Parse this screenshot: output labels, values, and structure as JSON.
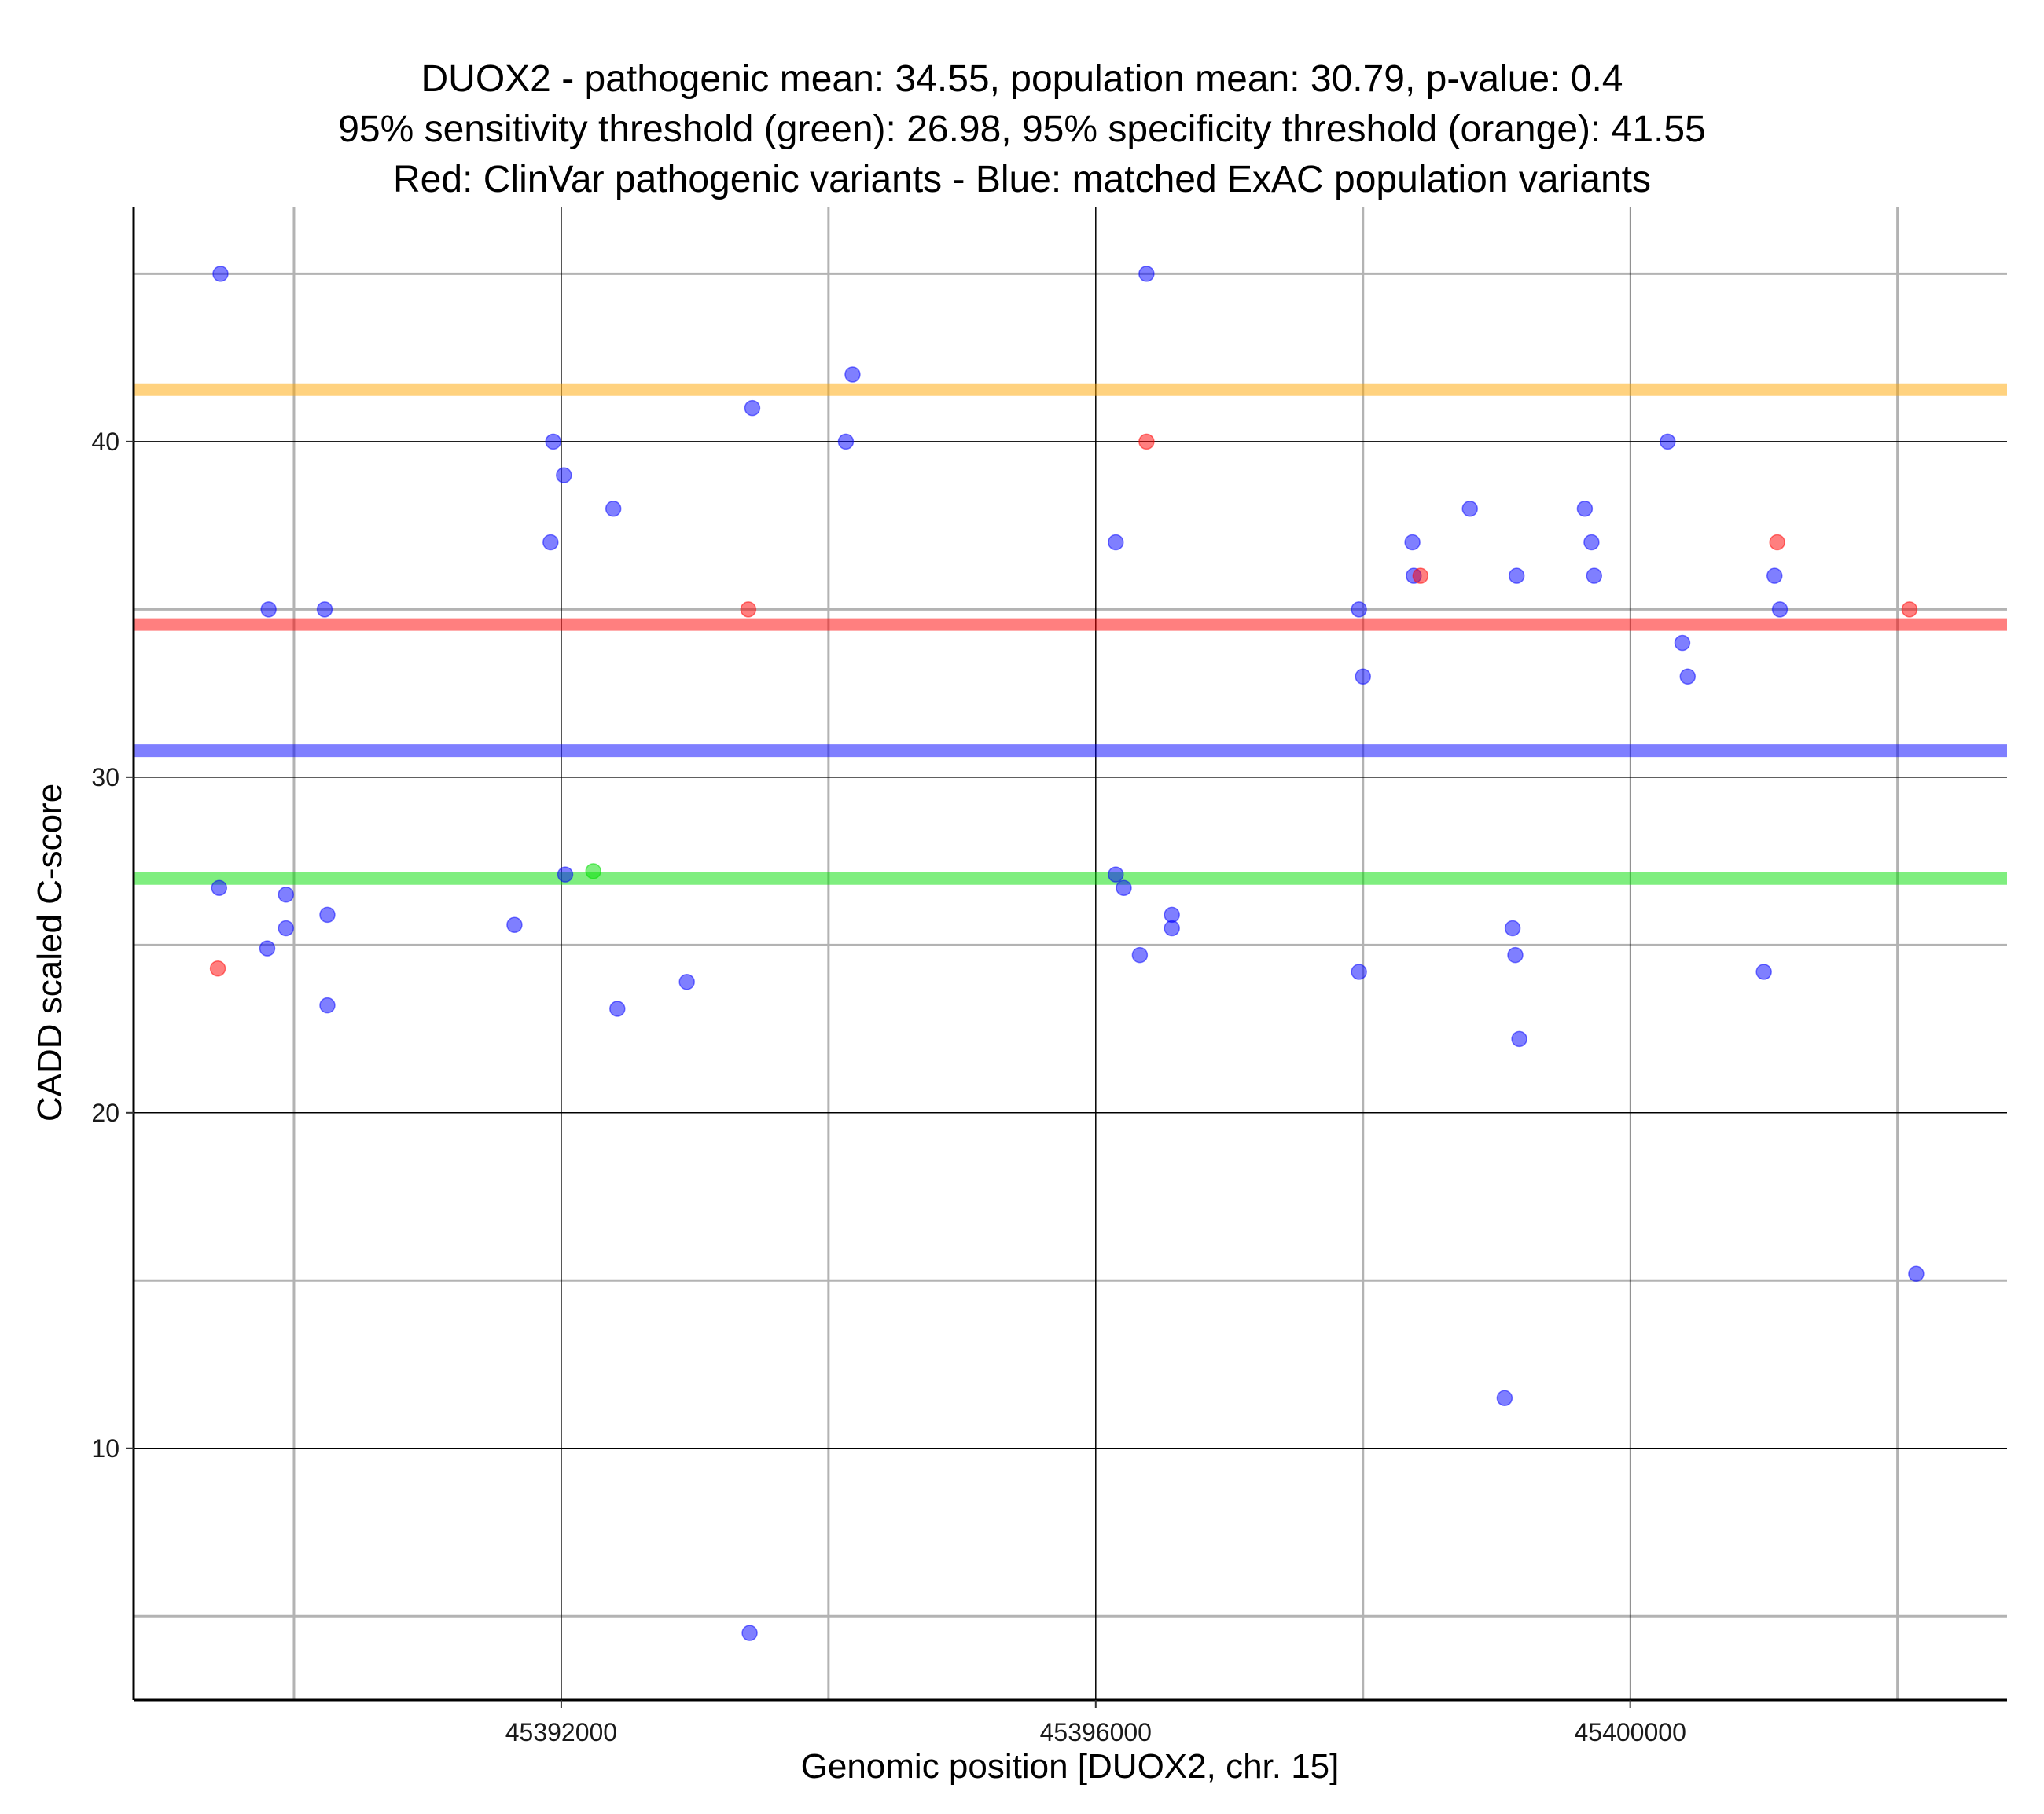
{
  "chart_data": {
    "type": "scatter",
    "title_lines": [
      "DUOX2 - pathogenic mean: 34.55, population mean: 30.79, p-value: 0.4",
      "95% sensitivity threshold (green): 26.98, 95% specificity threshold (orange): 41.55",
      "Red: ClinVar pathogenic variants - Blue: matched ExAC population variants"
    ],
    "xlabel": "Genomic position [DUOX2, chr. 15]",
    "ylabel": "CADD scaled C-score",
    "xlim": [
      45388800,
      45402820
    ],
    "ylim": [
      2.5,
      47
    ],
    "x_ticks": [
      45392000,
      45396000,
      45400000
    ],
    "x_tick_labels": [
      "45392000",
      "45396000",
      "45400000"
    ],
    "x_minor_grid": [
      45390000,
      45394000,
      45398000,
      45402000
    ],
    "y_ticks": [
      10,
      20,
      30,
      40
    ],
    "y_tick_labels": [
      "10",
      "20",
      "30",
      "40"
    ],
    "y_minor_grid": [
      5,
      15,
      25,
      35,
      45
    ],
    "grid": true,
    "colors": {
      "population": "#0000ff",
      "pathogenic": "#ff0000",
      "sensitivity": "#00dd00",
      "specificity": "#ffa500",
      "major_grid": "#000000",
      "minor_grid": "#b3b3b3"
    },
    "reference_lines": [
      {
        "name": "specificity-threshold",
        "value": 41.55,
        "color": "#ffa500"
      },
      {
        "name": "pathogenic-mean",
        "value": 34.55,
        "color": "#ff0000"
      },
      {
        "name": "population-mean",
        "value": 30.79,
        "color": "#0000ff"
      },
      {
        "name": "sensitivity-threshold",
        "value": 26.98,
        "color": "#00dd00"
      }
    ],
    "series": [
      {
        "name": "ExAC population variants",
        "color": "#0000ff",
        "points": [
          [
            45389450,
            45
          ],
          [
            45389440,
            26.7
          ],
          [
            45389810,
            35
          ],
          [
            45389800,
            24.9
          ],
          [
            45389940,
            26.5
          ],
          [
            45389940,
            25.5
          ],
          [
            45390230,
            35
          ],
          [
            45390250,
            25.9
          ],
          [
            45390250,
            23.2
          ],
          [
            45391650,
            25.6
          ],
          [
            45391920,
            37
          ],
          [
            45391940,
            40
          ],
          [
            45392020,
            39
          ],
          [
            45392030,
            27.1
          ],
          [
            45392390,
            38
          ],
          [
            45392420,
            23.1
          ],
          [
            45392940,
            23.9
          ],
          [
            45393430,
            41
          ],
          [
            45393410,
            4.5
          ],
          [
            45394130,
            40
          ],
          [
            45394180,
            42
          ],
          [
            45396150,
            37
          ],
          [
            45396150,
            27.1
          ],
          [
            45396210,
            26.7
          ],
          [
            45396330,
            24.7
          ],
          [
            45396380,
            45
          ],
          [
            45396570,
            25.9
          ],
          [
            45396570,
            25.5
          ],
          [
            45397970,
            35
          ],
          [
            45397970,
            24.2
          ],
          [
            45398000,
            33
          ],
          [
            45398370,
            37
          ],
          [
            45398380,
            36
          ],
          [
            45398800,
            38
          ],
          [
            45399150,
            36
          ],
          [
            45399120,
            25.5
          ],
          [
            45399140,
            24.7
          ],
          [
            45399170,
            22.2
          ],
          [
            45399060,
            11.5
          ],
          [
            45399660,
            38
          ],
          [
            45399710,
            37
          ],
          [
            45399730,
            36
          ],
          [
            45400280,
            40
          ],
          [
            45400390,
            34
          ],
          [
            45400430,
            33
          ],
          [
            45401000,
            24.2
          ],
          [
            45401080,
            36
          ],
          [
            45401120,
            35
          ],
          [
            45402140,
            15.2
          ]
        ]
      },
      {
        "name": "ClinVar pathogenic variants",
        "color": "#ff0000",
        "points": [
          [
            45389430,
            24.3
          ],
          [
            45393400,
            35
          ],
          [
            45396380,
            40
          ],
          [
            45398430,
            36
          ],
          [
            45401100,
            37
          ],
          [
            45402090,
            35
          ]
        ]
      },
      {
        "name": "variants near sensitivity threshold",
        "color": "#00dd00",
        "points": [
          [
            45392240,
            27.2
          ]
        ]
      }
    ]
  }
}
